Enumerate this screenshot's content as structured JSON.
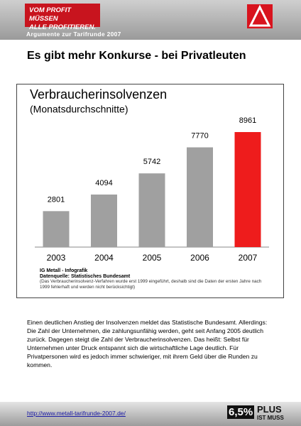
{
  "header": {
    "slogan_line1": "VOM PROFIT MÜSSEN",
    "slogan_line2": "ALLE PROFITIEREN.",
    "subtitle": "Argumente zur Tarifrunde 2007"
  },
  "title": "Es gibt mehr Konkurse - bei Privatleuten",
  "chart_data": {
    "type": "bar",
    "title": "Verbraucherinsolvenzen",
    "subtitle": "(Monatsdurchschnitte)",
    "categories": [
      "2003",
      "2004",
      "2005",
      "2006",
      "2007"
    ],
    "values": [
      2801,
      4094,
      5742,
      7770,
      8961
    ],
    "colors": [
      "#a0a0a0",
      "#a0a0a0",
      "#a0a0a0",
      "#a0a0a0",
      "#ee1c1c"
    ]
  },
  "chart_notes": {
    "source1": "IG Metall - Infografik",
    "source2": "Datenquelle: Statistisches Bundesamt",
    "note": "(Das Verbraucherinsolvenz-Verfahren wurde erst 1999 eingeführt, deshalb sind die Daten der ersten Jahre nach 1999 fehlerhaft und werden nicht berücksichtigt)"
  },
  "body": "Einen deutlichen Anstieg der Insolvenzen meldet das Statistische Bundesamt. Allerdings: Die Zahl der Unternehmen, die zahlungsunfähig werden, geht seit Anfang 2005 deutlich zurück. Dagegen steigt die Zahl der Verbraucherinsolvenzen. Das heißt: Selbst für Unternehmen unter Druck entspannt sich die wirtschaftliche Lage deutlich. Für Privatpersonen wird es jedoch immer schwieriger, mit ihrem Geld über die Runden zu kommen.",
  "footer": {
    "link": "http://www.metall-tarifrunde-2007.de/",
    "badge_number": "6,5%",
    "badge_plus": "PLUS",
    "badge_muss": "IST MUSS"
  }
}
